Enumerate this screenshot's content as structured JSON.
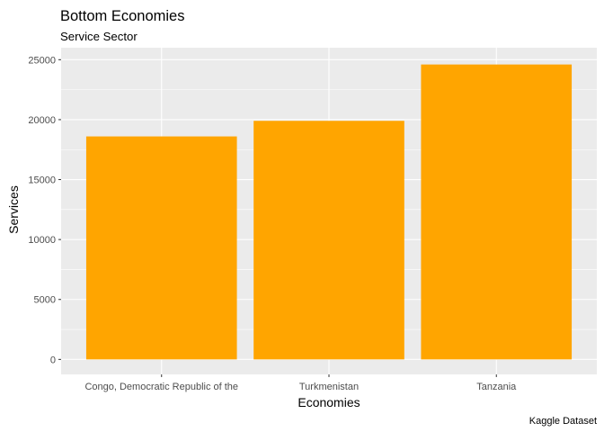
{
  "chart_data": {
    "type": "bar",
    "title": "Bottom Economies",
    "subtitle": "Service Sector",
    "xlabel": "Economies",
    "ylabel": "Services",
    "caption": "Kaggle Dataset",
    "categories": [
      "Congo, Democratic Republic of the",
      "Turkmenistan",
      "Tanzania"
    ],
    "values": [
      18600,
      19900,
      24600
    ],
    "ylim": [
      -1250,
      26000
    ],
    "yticks": [
      0,
      5000,
      10000,
      15000,
      20000,
      25000
    ],
    "ytick_labels": [
      "0",
      "5000",
      "10000",
      "15000",
      "20000",
      "25000"
    ],
    "grid": true,
    "legend": "none",
    "bar_color": "#FFA500",
    "panel_color": "#EBEBEB",
    "grid_color": "#FFFFFF"
  }
}
